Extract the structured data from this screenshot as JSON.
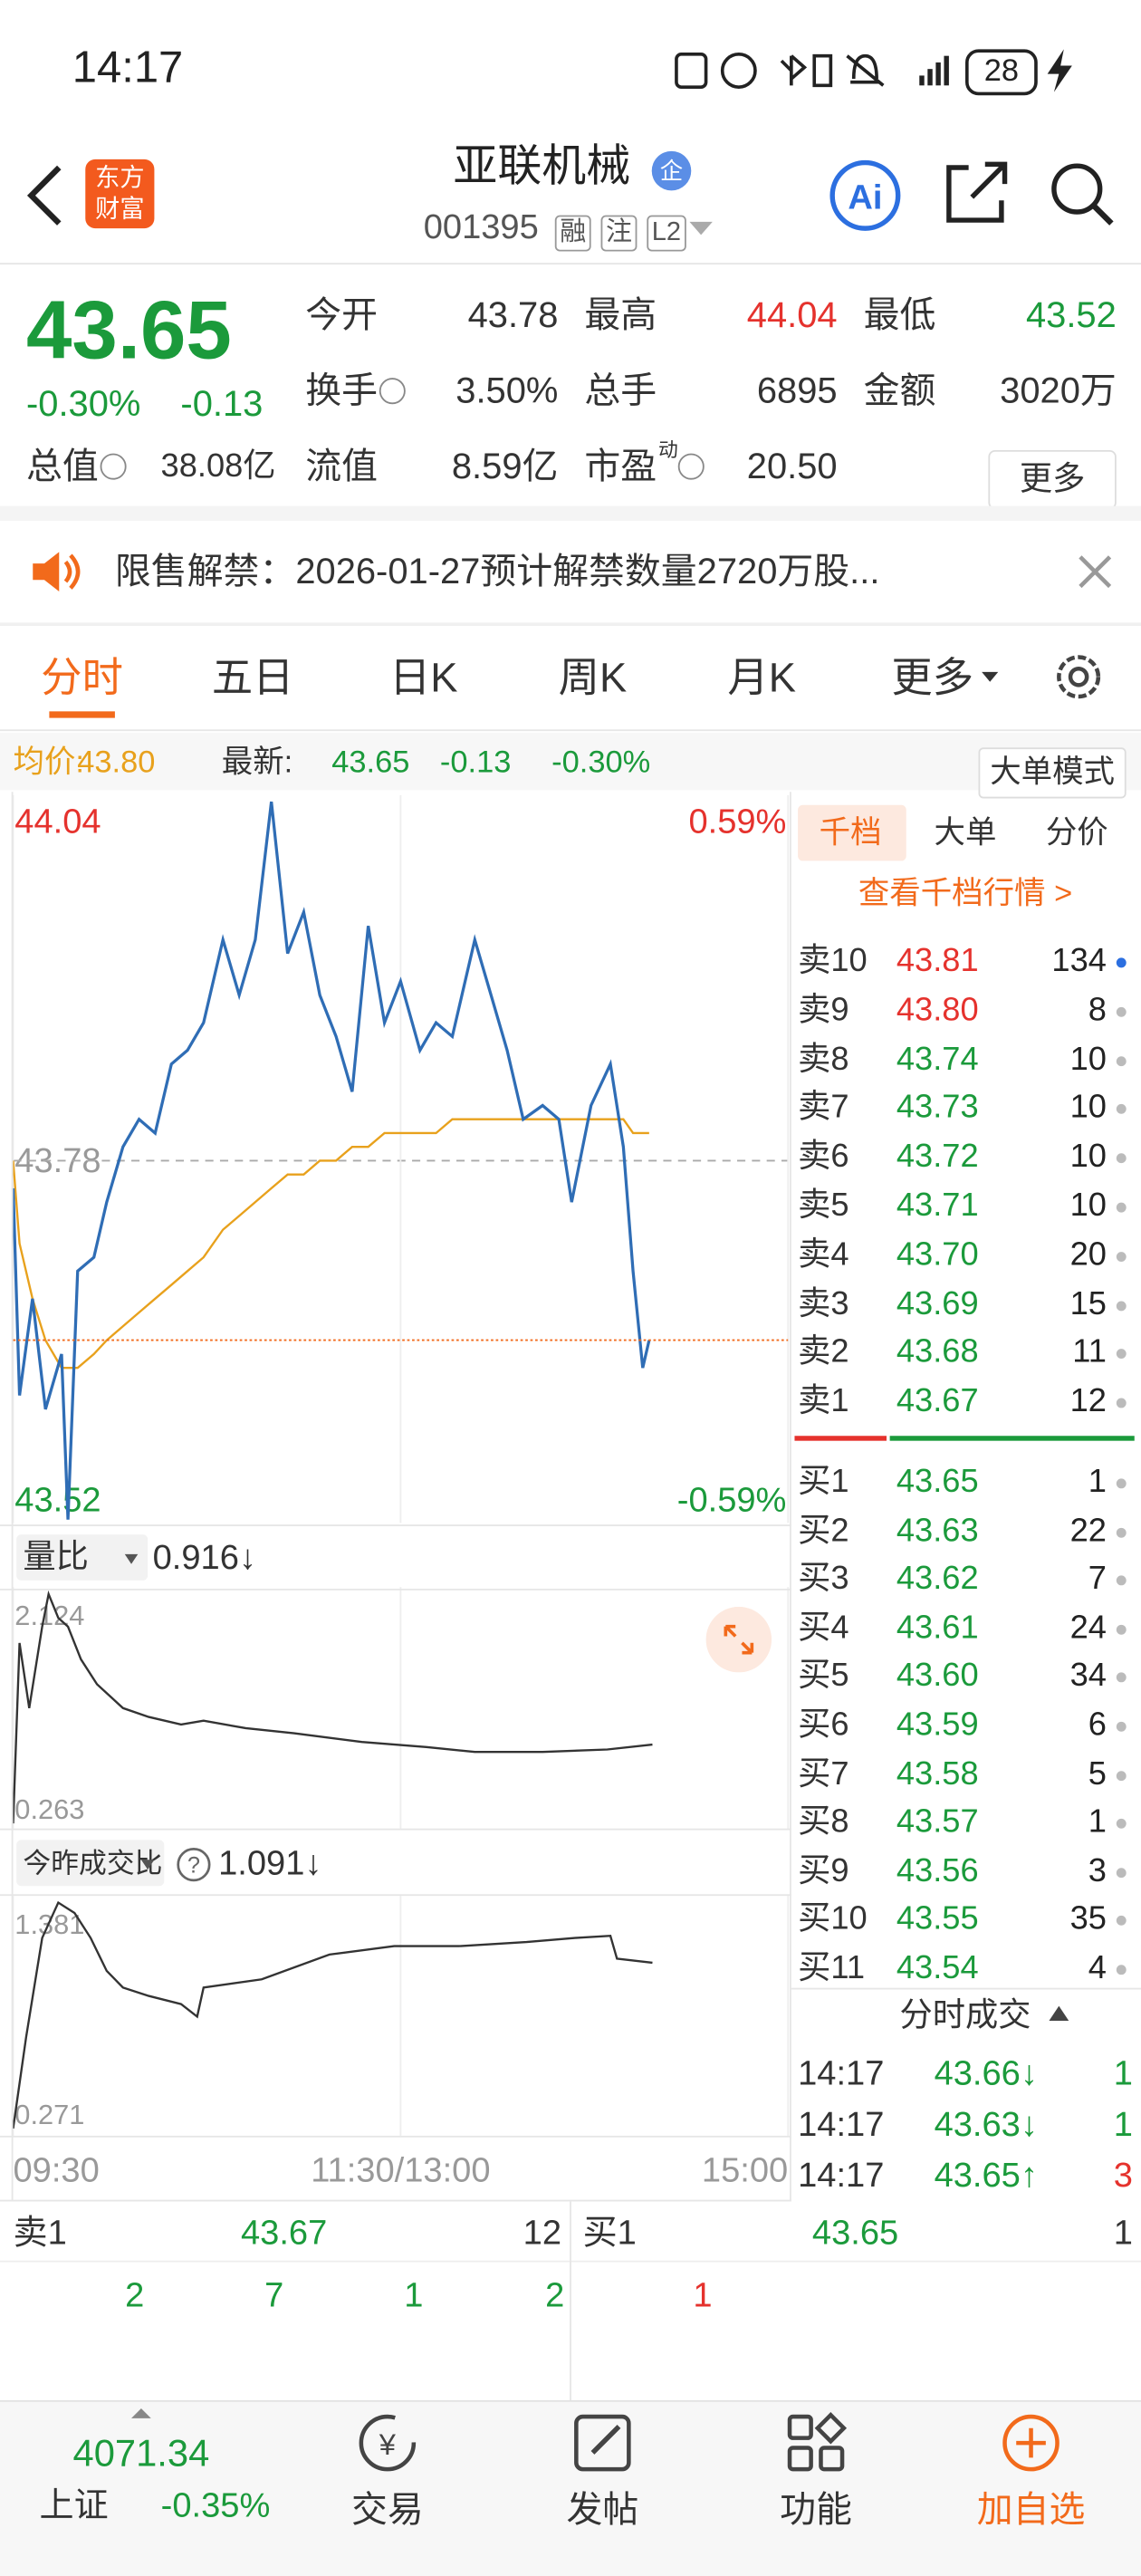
{
  "status_bar": {
    "time": "14:17",
    "battery": "28"
  },
  "header": {
    "logo": [
      "东方",
      "财富"
    ],
    "title": "亚联机械",
    "badge": "企",
    "code": "001395",
    "tags": [
      "融",
      "注",
      "L2"
    ]
  },
  "quote": {
    "price": "43.65",
    "change_pct": "-0.30%",
    "change": "-0.13",
    "more_button": "更多",
    "fields": [
      {
        "label": "今开",
        "value": "43.78"
      },
      {
        "label": "最高",
        "value": "44.04",
        "color": "#e5322d"
      },
      {
        "label": "最低",
        "value": "43.52",
        "color": "#1b9a3b"
      },
      {
        "label": "换手",
        "value": "3.50%",
        "info": true
      },
      {
        "label": "总手",
        "value": "6895"
      },
      {
        "label": "金额",
        "value": "3020万"
      },
      {
        "label": "总值",
        "value": "38.08亿",
        "info": true
      },
      {
        "label": "流值",
        "value": "8.59亿"
      },
      {
        "label": "市盈",
        "sup": "动",
        "value": "20.50",
        "info": true
      }
    ]
  },
  "notice": {
    "text": "限售解禁：2026-01-27预计解禁数量2720万股..."
  },
  "tabs": {
    "items": [
      "分时",
      "五日",
      "日K",
      "周K",
      "月K",
      "更多"
    ],
    "selected": 0
  },
  "info_bar": {
    "mode_button": "大单模式"
  },
  "chart_data": [
    {
      "type": "line",
      "grid": true,
      "xlim": [
        0,
        240
      ],
      "xticks": [
        {
          "value": 0,
          "label": "09:30"
        },
        {
          "value": 120,
          "label": "11:30/13:00"
        },
        {
          "value": 240,
          "label": "15:00"
        }
      ],
      "ylim": [
        43.52,
        44.04
      ],
      "yticks": [
        43.52,
        43.78,
        44.04
      ],
      "y2lim": [
        -0.59,
        0.59
      ],
      "y2ticks": [
        {
          "value": -0.59,
          "label": "-0.59%"
        },
        {
          "value": 0.59,
          "label": "0.59%"
        }
      ],
      "x": [
        0,
        2,
        6,
        10,
        15,
        17,
        20,
        25,
        29,
        34,
        39,
        44,
        49,
        54,
        59,
        65,
        70,
        75,
        80,
        85,
        90,
        95,
        100,
        105,
        110,
        115,
        120,
        126,
        131,
        136,
        143,
        148,
        153,
        158,
        164,
        169,
        173,
        179,
        185,
        189,
        192,
        195,
        197
      ],
      "series": [
        {
          "name": "均价:",
          "color": "#e8a11c",
          "current": "43.80",
          "values": [
            43.78,
            43.72,
            43.68,
            43.65,
            43.63,
            43.63,
            43.63,
            43.64,
            43.65,
            43.66,
            43.67,
            43.68,
            43.69,
            43.7,
            43.71,
            43.73,
            43.74,
            43.75,
            43.76,
            43.77,
            43.77,
            43.78,
            43.78,
            43.79,
            43.79,
            43.8,
            43.8,
            43.8,
            43.8,
            43.81,
            43.81,
            43.81,
            43.81,
            43.81,
            43.81,
            43.81,
            43.81,
            43.81,
            43.81,
            43.81,
            43.8,
            43.8,
            43.8
          ]
        },
        {
          "name": "最新:",
          "color": "#2f6db5",
          "current": "43.65",
          "change": "-0.13",
          "change_pct": "-0.30%",
          "values": [
            43.76,
            43.61,
            43.68,
            43.6,
            43.64,
            43.52,
            43.7,
            43.71,
            43.75,
            43.79,
            43.81,
            43.8,
            43.85,
            43.86,
            43.88,
            43.94,
            43.9,
            43.94,
            44.04,
            43.93,
            43.96,
            43.9,
            43.87,
            43.83,
            43.95,
            43.88,
            43.91,
            43.86,
            43.88,
            43.87,
            43.94,
            43.9,
            43.86,
            43.81,
            43.82,
            43.81,
            43.75,
            43.82,
            43.85,
            43.79,
            43.7,
            43.63,
            43.65
          ]
        }
      ]
    },
    {
      "type": "line",
      "title": "量比",
      "current": "0.916↓",
      "color": "#333333",
      "xlim": [
        0,
        240
      ],
      "ylim": [
        0.263,
        2.124
      ],
      "yticks": [
        0.263,
        2.124
      ],
      "x": [
        0,
        2,
        5,
        9,
        11,
        14,
        17,
        21,
        26,
        34,
        42,
        52,
        59,
        72,
        87,
        108,
        128,
        143,
        164,
        184,
        198
      ],
      "values": [
        0.29,
        1.73,
        1.21,
        1.86,
        2.12,
        1.93,
        1.86,
        1.6,
        1.4,
        1.21,
        1.14,
        1.08,
        1.11,
        1.05,
        1.01,
        0.94,
        0.9,
        0.86,
        0.86,
        0.88,
        0.92
      ]
    },
    {
      "type": "line",
      "title": "今昨成交比",
      "current": "1.091↓",
      "color": "#333333",
      "xlim": [
        0,
        240
      ],
      "ylim": [
        0.271,
        1.381
      ],
      "yticks": [
        0.271,
        1.381
      ],
      "x": [
        0,
        4,
        9,
        14,
        19,
        24,
        29,
        34,
        42,
        52,
        57,
        59,
        77,
        98,
        118,
        138,
        159,
        174,
        185,
        187,
        198
      ],
      "values": [
        0.29,
        0.73,
        1.21,
        1.38,
        1.33,
        1.21,
        1.05,
        0.97,
        0.93,
        0.89,
        0.83,
        0.97,
        1.01,
        1.13,
        1.17,
        1.17,
        1.19,
        1.21,
        1.22,
        1.11,
        1.09
      ]
    }
  ],
  "order_book": {
    "tabs": [
      "千档",
      "大单",
      "分价"
    ],
    "link": "查看千档行情 >",
    "asks": [
      {
        "label": "卖10",
        "price": "43.81",
        "volume": "134"
      },
      {
        "label": "卖9",
        "price": "43.80",
        "volume": "8"
      },
      {
        "label": "卖8",
        "price": "43.74",
        "volume": "10"
      },
      {
        "label": "卖7",
        "price": "43.73",
        "volume": "10"
      },
      {
        "label": "卖6",
        "price": "43.72",
        "volume": "10"
      },
      {
        "label": "卖5",
        "price": "43.71",
        "volume": "10"
      },
      {
        "label": "卖4",
        "price": "43.70",
        "volume": "20"
      },
      {
        "label": "卖3",
        "price": "43.69",
        "volume": "15"
      },
      {
        "label": "卖2",
        "price": "43.68",
        "volume": "11"
      },
      {
        "label": "卖1",
        "price": "43.67",
        "volume": "12"
      }
    ],
    "bids": [
      {
        "label": "买1",
        "price": "43.65",
        "volume": "1"
      },
      {
        "label": "买2",
        "price": "43.63",
        "volume": "22"
      },
      {
        "label": "买3",
        "price": "43.62",
        "volume": "7"
      },
      {
        "label": "买4",
        "price": "43.61",
        "volume": "24"
      },
      {
        "label": "买5",
        "price": "43.60",
        "volume": "34"
      },
      {
        "label": "买6",
        "price": "43.59",
        "volume": "6"
      },
      {
        "label": "买7",
        "price": "43.58",
        "volume": "5"
      },
      {
        "label": "买8",
        "price": "43.57",
        "volume": "1"
      },
      {
        "label": "买9",
        "price": "43.56",
        "volume": "3"
      },
      {
        "label": "买10",
        "price": "43.55",
        "volume": "35"
      },
      {
        "label": "买11",
        "price": "43.54",
        "volume": "4"
      }
    ]
  },
  "trades": {
    "title": "分时成交",
    "rows": [
      {
        "time": "14:17",
        "price": "43.66↓",
        "volume": "1",
        "color": "#1b9a3b"
      },
      {
        "time": "14:17",
        "price": "43.63↓",
        "volume": "1",
        "color": "#1b9a3b"
      },
      {
        "time": "14:17",
        "price": "43.65↑",
        "volume": "3",
        "color": "#e5322d"
      }
    ]
  },
  "bottom_panel": {
    "ask": {
      "label": "卖1",
      "price": "43.67",
      "volume": "12",
      "queue": [
        "2",
        "7",
        "1",
        "2"
      ],
      "color": "#1b9a3b"
    },
    "bid": {
      "label": "买1",
      "price": "43.65",
      "volume": "1",
      "queue": [
        "1"
      ],
      "color": "#e5322d"
    }
  },
  "nav": {
    "index": {
      "value": "4071.34",
      "name": "上证",
      "change": "-0.35%"
    },
    "items": [
      "交易",
      "发帖",
      "功能",
      "加自选"
    ]
  }
}
